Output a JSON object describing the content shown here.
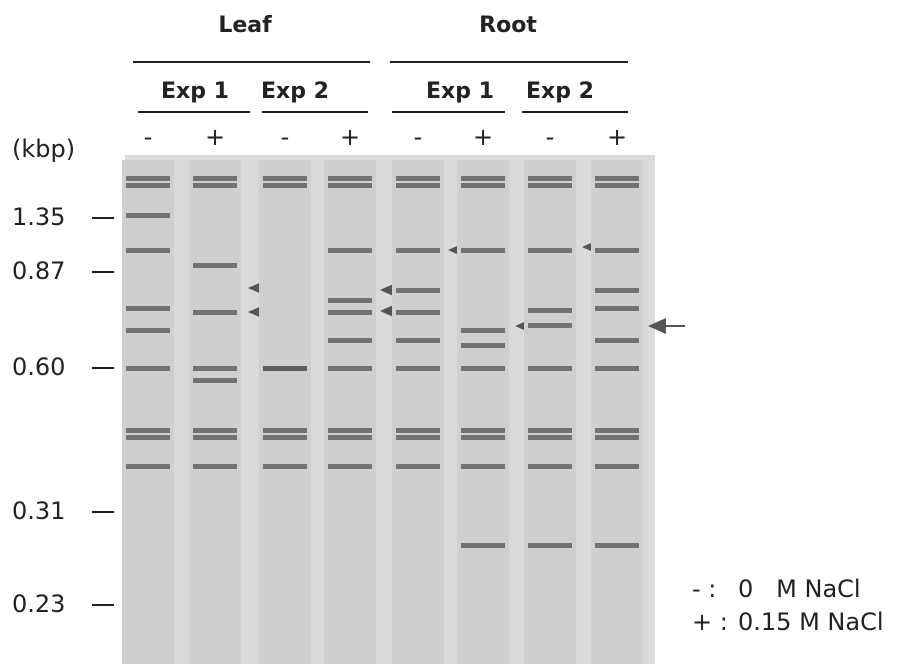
{
  "groups": [
    {
      "label": "Leaf",
      "experiments": [
        "Exp 1",
        "Exp 2"
      ]
    },
    {
      "label": "Root",
      "experiments": [
        "Exp 1",
        "Exp 2"
      ]
    }
  ],
  "unit": "(kbp)",
  "lanes": [
    "-",
    "+",
    "-",
    "+",
    "-",
    "+",
    "-",
    "+"
  ],
  "markers": [
    "1.35",
    "0.87",
    "0.60",
    "0.31",
    "0.23"
  ],
  "legend": [
    {
      "symbol": "- :",
      "text": "0   M NaCl"
    },
    {
      "symbol": "+ :",
      "text": "0.15 M NaCl"
    }
  ]
}
